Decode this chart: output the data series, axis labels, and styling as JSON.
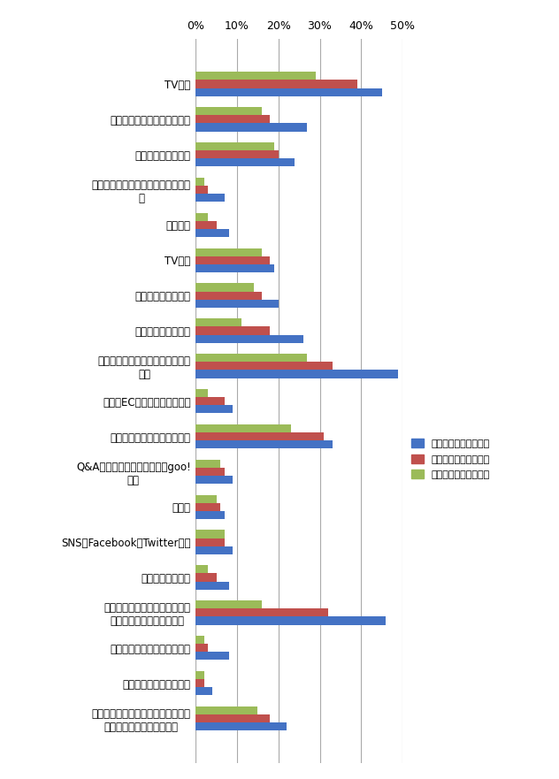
{
  "categories": [
    "TV広告",
    "雑誌広告・新聞広告・チラシ",
    "インターネット広告",
    "スマートフォン等のポップアップ配\n信",
    "屋外広告",
    "TV番組",
    "雑誌記事・新聞記事",
    "カタログ（紙媒体）",
    "メーカーのサイト（ホームページ\n等）",
    "小売（EC事業者等）のサイト",
    "比較サイト（カカクコム等）",
    "Q&Aサイト（はてな、教えてgoo!\n等）",
    "ブログ",
    "SNS（Facebook、Twitter等）",
    "展示会・イベント",
    "実店舗店頭（店頭での実物の確\n認、店員からの紹介　等）",
    "メーカー問合せ窓口（電話）",
    "小売問合せ窓口（電話）",
    "知人からの紹介・口コミ（対面、電\n話、メール等による紹介）"
  ],
  "series": [
    {
      "name": "ブランド重視度「大」",
      "color": "#4472C4",
      "values": [
        45,
        27,
        24,
        7,
        8,
        19,
        20,
        26,
        49,
        9,
        33,
        9,
        7,
        9,
        8,
        46,
        8,
        4,
        22
      ]
    },
    {
      "name": "ブランド重視度「中」",
      "color": "#C0504D",
      "values": [
        39,
        18,
        20,
        3,
        5,
        18,
        16,
        18,
        33,
        7,
        31,
        7,
        6,
        7,
        5,
        32,
        3,
        2,
        18
      ]
    },
    {
      "name": "ブランド重視度「小」",
      "color": "#9BBB59",
      "values": [
        29,
        16,
        19,
        2,
        3,
        16,
        14,
        11,
        27,
        3,
        23,
        6,
        5,
        7,
        3,
        16,
        2,
        2,
        15
      ]
    }
  ],
  "xlim": [
    0,
    50
  ],
  "xticks": [
    0,
    10,
    20,
    30,
    40,
    50
  ],
  "xticklabels": [
    "0%",
    "10%",
    "20%",
    "30%",
    "40%",
    "50%"
  ],
  "bar_height": 0.23,
  "background_color": "#FFFFFF",
  "grid_color": "#AAAAAA",
  "label_fontsize": 8.5,
  "tick_fontsize": 9
}
